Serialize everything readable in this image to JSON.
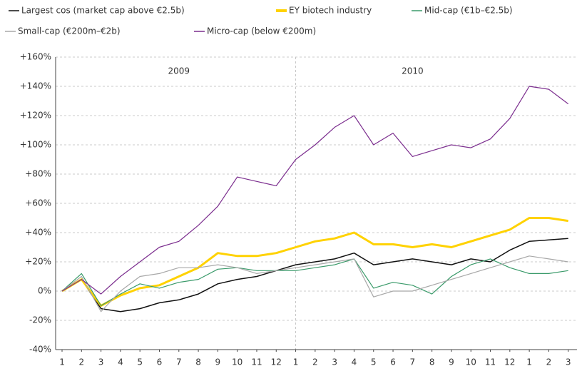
{
  "chart_data": {
    "type": "line",
    "x": [
      1,
      2,
      3,
      4,
      5,
      6,
      7,
      8,
      9,
      10,
      11,
      12,
      13,
      14,
      15,
      16,
      17,
      18,
      19,
      20,
      21,
      22,
      23,
      24,
      25,
      26,
      27
    ],
    "series": [
      {
        "name": "Largest cos (market cap above €2.5b)",
        "color": "#111111",
        "width": 1.5,
        "values": [
          0,
          8,
          -12,
          -14,
          -12,
          -8,
          -6,
          -2,
          5,
          8,
          10,
          14,
          18,
          20,
          22,
          26,
          18,
          20,
          22,
          20,
          18,
          22,
          20,
          28,
          34,
          35,
          36
        ]
      },
      {
        "name": "EY biotech industry",
        "color": "#ffd200",
        "width": 3,
        "values": [
          0,
          8,
          -10,
          -3,
          2,
          4,
          10,
          16,
          26,
          24,
          24,
          26,
          30,
          34,
          36,
          40,
          32,
          32,
          30,
          32,
          30,
          34,
          38,
          42,
          50,
          50,
          48
        ]
      },
      {
        "name": "Mid-cap (€1b–€2.5b)",
        "color": "#3a9a6a",
        "width": 1.2,
        "values": [
          0,
          12,
          -10,
          -2,
          5,
          2,
          6,
          8,
          15,
          16,
          14,
          14,
          14,
          16,
          18,
          22,
          2,
          6,
          4,
          -2,
          10,
          18,
          22,
          16,
          12,
          12,
          14
        ]
      },
      {
        "name": "Small-cap (€200m–€2b)",
        "color": "#a8a8a8",
        "width": 1.2,
        "values": [
          0,
          10,
          -14,
          0,
          10,
          12,
          16,
          16,
          18,
          16,
          12,
          14,
          16,
          18,
          20,
          22,
          -4,
          0,
          0,
          4,
          8,
          12,
          16,
          20,
          24,
          22,
          20
        ]
      },
      {
        "name": "Micro-cap (below €200m)",
        "color": "#7b2d8e",
        "width": 1.2,
        "values": [
          0,
          8,
          -2,
          10,
          20,
          30,
          34,
          45,
          58,
          78,
          75,
          72,
          90,
          100,
          112,
          120,
          100,
          108,
          92,
          96,
          100,
          98,
          104,
          118,
          140,
          138,
          128
        ]
      }
    ],
    "xlim": [
      0.67,
      27.45
    ],
    "xticks": [
      {
        "value": 1,
        "label": "1"
      },
      {
        "value": 2,
        "label": "2"
      },
      {
        "value": 3,
        "label": "3"
      },
      {
        "value": 4,
        "label": "4"
      },
      {
        "value": 5,
        "label": "5"
      },
      {
        "value": 6,
        "label": "6"
      },
      {
        "value": 7,
        "label": "7"
      },
      {
        "value": 8,
        "label": "8"
      },
      {
        "value": 9,
        "label": "9"
      },
      {
        "value": 10,
        "label": "10"
      },
      {
        "value": 11,
        "label": "11"
      },
      {
        "value": 12,
        "label": "12"
      },
      {
        "value": 13,
        "label": "1"
      },
      {
        "value": 14,
        "label": "2"
      },
      {
        "value": 15,
        "label": "3"
      },
      {
        "value": 16,
        "label": "4"
      },
      {
        "value": 17,
        "label": "5"
      },
      {
        "value": 18,
        "label": "6"
      },
      {
        "value": 19,
        "label": "7"
      },
      {
        "value": 20,
        "label": "8"
      },
      {
        "value": 21,
        "label": "9"
      },
      {
        "value": 22,
        "label": "10"
      },
      {
        "value": 23,
        "label": "11"
      },
      {
        "value": 24,
        "label": "12"
      },
      {
        "value": 25,
        "label": "1"
      },
      {
        "value": 26,
        "label": "2"
      },
      {
        "value": 27,
        "label": "3"
      }
    ],
    "ylim": [
      -40,
      160
    ],
    "yticks": [
      {
        "value": -40,
        "label": "-40%"
      },
      {
        "value": -20,
        "label": "-20%"
      },
      {
        "value": 0,
        "label": "0%"
      },
      {
        "value": 20,
        "label": "+20%"
      },
      {
        "value": 40,
        "label": "+40%"
      },
      {
        "value": 60,
        "label": "+60%"
      },
      {
        "value": 80,
        "label": "+80%"
      },
      {
        "value": 100,
        "label": "+100%"
      },
      {
        "value": 120,
        "label": "+120%"
      },
      {
        "value": 140,
        "label": "+140%"
      },
      {
        "value": 160,
        "label": "+160%"
      }
    ],
    "annotations": [
      {
        "text": "2009",
        "x": 7
      },
      {
        "text": "2010",
        "x": 19
      }
    ],
    "grid": true
  }
}
